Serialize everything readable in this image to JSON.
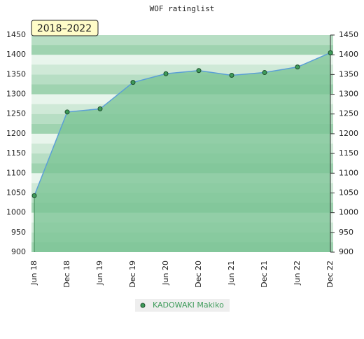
{
  "chart_data": {
    "type": "area",
    "title": "WOF ratinglist",
    "badge": "2018–2022",
    "categories": [
      "Jun 18",
      "Dec 18",
      "Jun 19",
      "Dec 19",
      "Jun 20",
      "Dec 20",
      "Jun 21",
      "Dec 21",
      "Jun 22",
      "Dec 22"
    ],
    "series": [
      {
        "name": "KADOWAKI Makiko",
        "color": "#5b9fd6",
        "fill": "#7cc496",
        "marker": "#3e9b5a",
        "values": [
          1043,
          1255,
          1263,
          1330,
          1352,
          1360,
          1348,
          1355,
          1369,
          1405
        ]
      }
    ],
    "ylim": [
      900,
      1450
    ],
    "yticks": [
      900,
      950,
      1000,
      1050,
      1100,
      1150,
      1200,
      1250,
      1300,
      1350,
      1400,
      1450
    ]
  }
}
